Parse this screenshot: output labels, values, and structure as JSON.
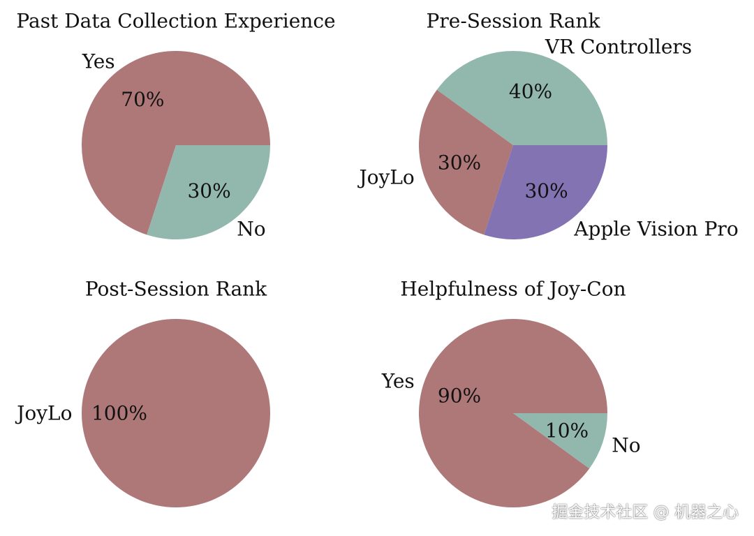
{
  "colors": {
    "rose": "#ae7878",
    "sage": "#92b8ae",
    "violet": "#8373b3"
  },
  "chart_data": [
    {
      "type": "pie",
      "title": "Past Data Collection Experience",
      "slices": [
        {
          "label": "Yes",
          "value": 70,
          "pct_label": "70%",
          "color": "#ae7878"
        },
        {
          "label": "No",
          "value": 30,
          "pct_label": "30%",
          "color": "#92b8ae"
        }
      ]
    },
    {
      "type": "pie",
      "title": "Pre-Session Rank",
      "slices": [
        {
          "label": "VR Controllers",
          "value": 40,
          "pct_label": "40%",
          "color": "#92b8ae"
        },
        {
          "label": "JoyLo",
          "value": 30,
          "pct_label": "30%",
          "color": "#ae7878"
        },
        {
          "label": "Apple Vision Pro",
          "value": 30,
          "pct_label": "30%",
          "color": "#8373b3"
        }
      ]
    },
    {
      "type": "pie",
      "title": "Post-Session Rank",
      "slices": [
        {
          "label": "JoyLo",
          "value": 100,
          "pct_label": "100%",
          "color": "#ae7878"
        }
      ]
    },
    {
      "type": "pie",
      "title": "Helpfulness of Joy-Con",
      "slices": [
        {
          "label": "Yes",
          "value": 90,
          "pct_label": "90%",
          "color": "#ae7878"
        },
        {
          "label": "No",
          "value": 10,
          "pct_label": "10%",
          "color": "#92b8ae"
        }
      ]
    }
  ],
  "watermark": "掘金技术社区 @ 机器之心"
}
